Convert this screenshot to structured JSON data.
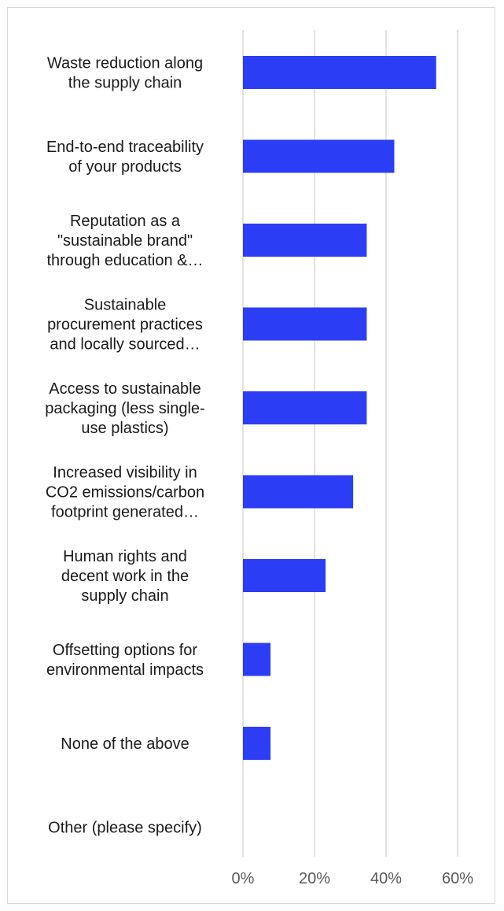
{
  "chart_data": {
    "type": "bar",
    "orientation": "horizontal",
    "categories": [
      [
        "Waste reduction along",
        "the supply chain"
      ],
      [
        "End-to-end traceability",
        "of your products"
      ],
      [
        "Reputation as a",
        "\"sustainable brand\"",
        "through education &…"
      ],
      [
        "Sustainable",
        "procurement practices",
        "and locally sourced…"
      ],
      [
        "Access to sustainable",
        "packaging (less single-",
        "use plastics)"
      ],
      [
        "Increased visibility in",
        "CO2 emissions/carbon",
        "footprint generated…"
      ],
      [
        "Human rights and",
        "decent work in the",
        "supply chain"
      ],
      [
        "Offsetting options for",
        "environmental impacts"
      ],
      [
        "None of the above"
      ],
      [
        "Other (please specify)"
      ]
    ],
    "values": [
      54,
      42.3,
      34.6,
      34.6,
      34.6,
      30.8,
      23.1,
      7.7,
      7.7,
      0
    ],
    "xlim": [
      0,
      60
    ],
    "xticks": [
      0,
      20,
      40,
      60
    ],
    "xtick_labels": [
      "0%",
      "20%",
      "40%",
      "60%"
    ],
    "grid": "vertical",
    "legend": "none",
    "bar_color": "#2b3ef5",
    "grid_color": "#d9d9d9",
    "text_color": "#1a1a1a",
    "tick_color": "#595959"
  }
}
